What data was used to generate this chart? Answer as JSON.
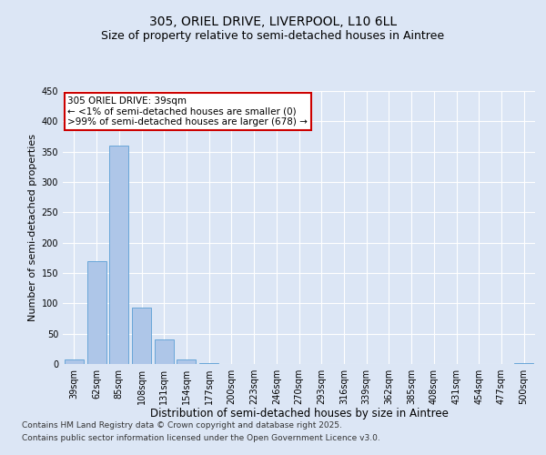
{
  "title_line1": "305, ORIEL DRIVE, LIVERPOOL, L10 6LL",
  "title_line2": "Size of property relative to semi-detached houses in Aintree",
  "xlabel": "Distribution of semi-detached houses by size in Aintree",
  "ylabel": "Number of semi-detached properties",
  "categories": [
    "39sqm",
    "62sqm",
    "85sqm",
    "108sqm",
    "131sqm",
    "154sqm",
    "177sqm",
    "200sqm",
    "223sqm",
    "246sqm",
    "270sqm",
    "293sqm",
    "316sqm",
    "339sqm",
    "362sqm",
    "385sqm",
    "408sqm",
    "431sqm",
    "454sqm",
    "477sqm",
    "500sqm"
  ],
  "values": [
    7,
    170,
    360,
    93,
    40,
    8,
    2,
    0,
    0,
    0,
    0,
    0,
    0,
    0,
    0,
    0,
    0,
    0,
    0,
    0,
    2
  ],
  "bar_color": "#aec6e8",
  "bar_edge_color": "#5a9fd4",
  "annotation_text": "305 ORIEL DRIVE: 39sqm\n← <1% of semi-detached houses are smaller (0)\n>99% of semi-detached houses are larger (678) →",
  "annotation_box_facecolor": "#ffffff",
  "annotation_box_edgecolor": "#cc0000",
  "ylim": [
    0,
    450
  ],
  "yticks": [
    0,
    50,
    100,
    150,
    200,
    250,
    300,
    350,
    400,
    450
  ],
  "bg_color": "#dce6f5",
  "plot_bg_color": "#dce6f5",
  "footer_line1": "Contains HM Land Registry data © Crown copyright and database right 2025.",
  "footer_line2": "Contains public sector information licensed under the Open Government Licence v3.0.",
  "title_fontsize": 10,
  "subtitle_fontsize": 9,
  "tick_fontsize": 7,
  "xlabel_fontsize": 8.5,
  "ylabel_fontsize": 8,
  "footer_fontsize": 6.5,
  "annotation_fontsize": 7.5
}
